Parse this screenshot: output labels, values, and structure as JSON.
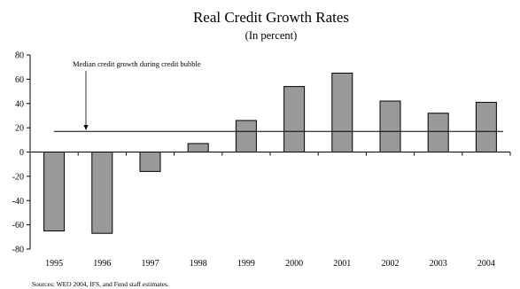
{
  "chart_data": {
    "type": "bar",
    "title": "Real Credit Growth Rates",
    "subtitle": "(In percent)",
    "categories": [
      "1995",
      "1996",
      "1997",
      "1998",
      "1999",
      "2000",
      "2001",
      "2002",
      "2003",
      "2004"
    ],
    "values": [
      -65,
      -67,
      -16,
      7,
      26,
      54,
      65,
      42,
      32,
      41
    ],
    "ylim": [
      -80,
      80
    ],
    "yticks": [
      "80",
      "60",
      "40",
      "20",
      "0",
      "-20",
      "-40",
      "-60",
      "-80"
    ],
    "reference_line": {
      "value": 17,
      "label": "Median credit growth during credit bubble"
    },
    "source": "Sources: WEO 2004, IFS, and Fund staff estimates.",
    "colors": {
      "bar_fill": "#999999",
      "bar_stroke": "#000000"
    }
  }
}
